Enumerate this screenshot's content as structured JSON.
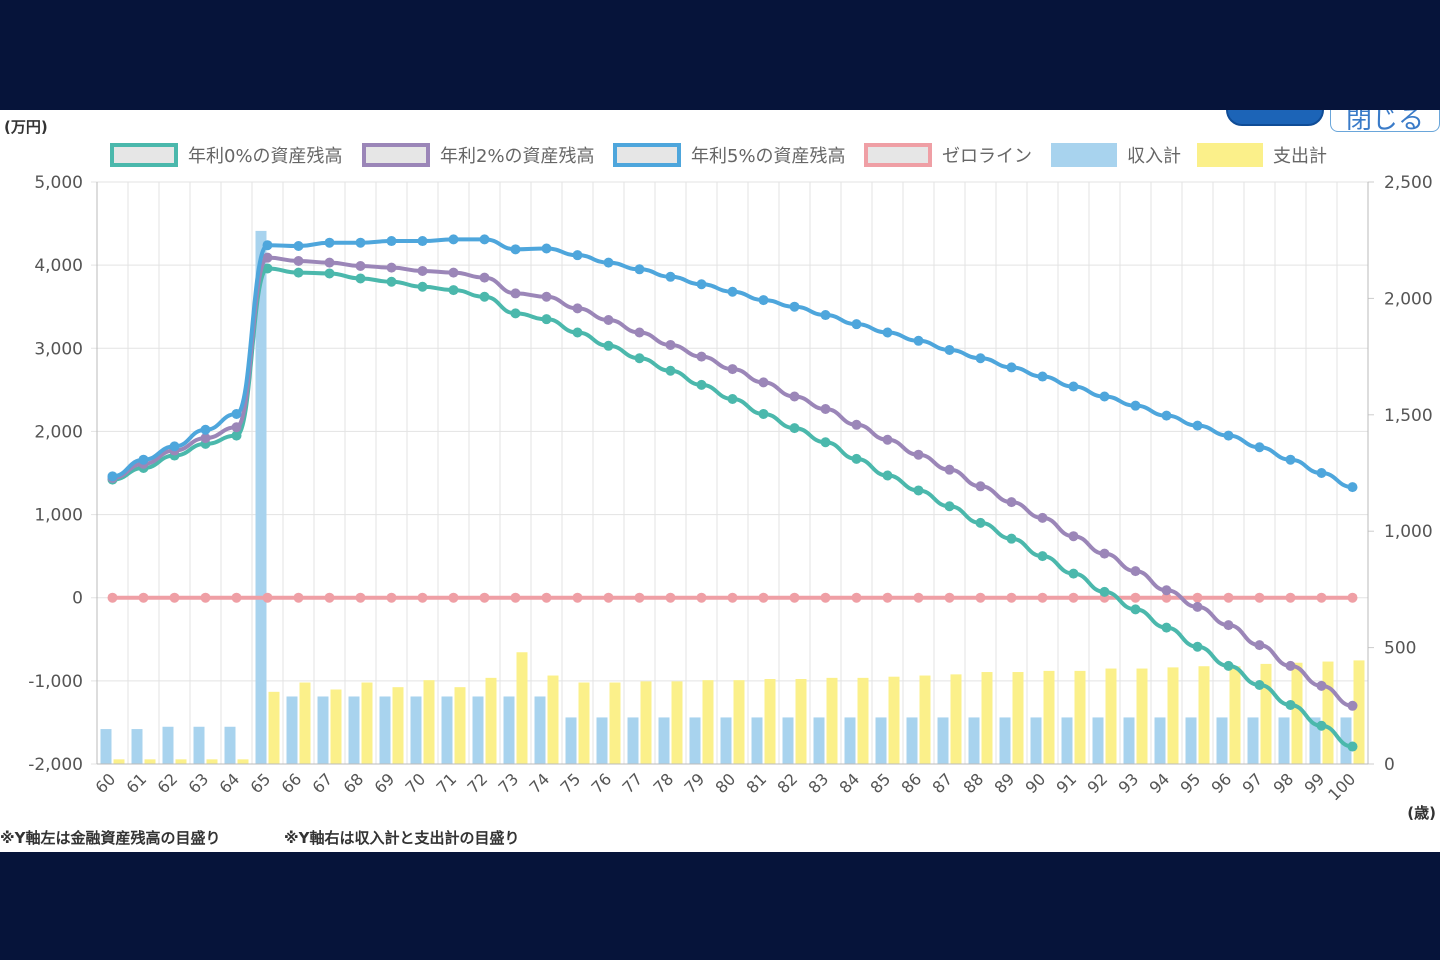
{
  "buttons": {
    "close_label": "閉じる"
  },
  "notes": {
    "left_axis_note": "※Y軸左は金融資産残高の目盛り",
    "right_axis_note": "※Y軸右は収入計と支出計の目盛り"
  },
  "chart_data": {
    "type": "bar-line-combo",
    "left_axis_unit": "(万円)",
    "x_axis_unit": "(歳)",
    "categories": [
      "60",
      "61",
      "62",
      "63",
      "64",
      "65",
      "66",
      "67",
      "68",
      "69",
      "70",
      "71",
      "72",
      "73",
      "74",
      "75",
      "76",
      "77",
      "78",
      "79",
      "80",
      "81",
      "82",
      "83",
      "84",
      "85",
      "86",
      "87",
      "88",
      "89",
      "90",
      "91",
      "92",
      "93",
      "94",
      "95",
      "96",
      "97",
      "98",
      "99",
      "100"
    ],
    "y_left": {
      "min": -2000,
      "max": 5000,
      "ticks": [
        5000,
        4000,
        3000,
        2000,
        1000,
        0,
        -1000,
        -2000
      ],
      "tick_labels": [
        "5,000",
        "4,000",
        "3,000",
        "2,000",
        "1,000",
        "0",
        "-1,000",
        "-2,000"
      ]
    },
    "y_right": {
      "min": 0,
      "max": 2500,
      "ticks": [
        2500,
        2000,
        1500,
        1000,
        500,
        0
      ],
      "tick_labels": [
        "2,500",
        "2,000",
        "1,500",
        "1,000",
        "500",
        "0"
      ]
    },
    "grid": true,
    "legend_position": "top",
    "lines": [
      {
        "name": "年利0%の資産残高",
        "color": "#4bb8ac",
        "axis": "left",
        "values": [
          1420,
          1560,
          1710,
          1850,
          1950,
          3960,
          3910,
          3900,
          3840,
          3800,
          3740,
          3700,
          3620,
          3420,
          3350,
          3190,
          3030,
          2880,
          2730,
          2560,
          2390,
          2210,
          2040,
          1870,
          1670,
          1470,
          1290,
          1100,
          900,
          710,
          500,
          290,
          70,
          -140,
          -360,
          -590,
          -820,
          -1050,
          -1290,
          -1540,
          -1790
        ]
      },
      {
        "name": "年利2%の資産残高",
        "color": "#9b86b8",
        "axis": "left",
        "values": [
          1440,
          1610,
          1770,
          1920,
          2050,
          4090,
          4050,
          4030,
          3990,
          3970,
          3930,
          3910,
          3850,
          3660,
          3620,
          3480,
          3340,
          3190,
          3040,
          2900,
          2750,
          2590,
          2420,
          2270,
          2080,
          1900,
          1720,
          1540,
          1340,
          1150,
          960,
          740,
          530,
          320,
          90,
          -110,
          -330,
          -570,
          -820,
          -1060,
          -1300
        ]
      },
      {
        "name": "年利5%の資産残高",
        "color": "#4ea6dc",
        "axis": "left",
        "values": [
          1460,
          1660,
          1820,
          2020,
          2210,
          4240,
          4230,
          4270,
          4270,
          4290,
          4290,
          4310,
          4310,
          4190,
          4200,
          4120,
          4030,
          3950,
          3860,
          3770,
          3680,
          3580,
          3500,
          3400,
          3290,
          3190,
          3090,
          2980,
          2880,
          2770,
          2660,
          2540,
          2420,
          2310,
          2190,
          2070,
          1950,
          1810,
          1660,
          1500,
          1330
        ]
      },
      {
        "name": "ゼロライン",
        "color": "#ef9fa5",
        "axis": "left",
        "values": [
          0,
          0,
          0,
          0,
          0,
          0,
          0,
          0,
          0,
          0,
          0,
          0,
          0,
          0,
          0,
          0,
          0,
          0,
          0,
          0,
          0,
          0,
          0,
          0,
          0,
          0,
          0,
          0,
          0,
          0,
          0,
          0,
          0,
          0,
          0,
          0,
          0,
          0,
          0,
          0,
          0
        ]
      }
    ],
    "bars": [
      {
        "name": "収入計",
        "color": "#a8d3ee",
        "axis": "right",
        "values": [
          150,
          150,
          160,
          160,
          160,
          2290,
          290,
          290,
          290,
          290,
          290,
          290,
          290,
          290,
          290,
          200,
          200,
          200,
          200,
          200,
          200,
          200,
          200,
          200,
          200,
          200,
          200,
          200,
          200,
          200,
          200,
          200,
          200,
          200,
          200,
          200,
          200,
          200,
          200,
          200,
          200
        ]
      },
      {
        "name": "支出計",
        "color": "#fbf08a",
        "axis": "right",
        "values": [
          20,
          20,
          20,
          20,
          20,
          310,
          350,
          320,
          350,
          330,
          360,
          330,
          370,
          480,
          380,
          350,
          350,
          355,
          355,
          360,
          360,
          365,
          365,
          370,
          370,
          375,
          380,
          385,
          395,
          395,
          400,
          400,
          410,
          410,
          415,
          420,
          420,
          430,
          435,
          440,
          445
        ]
      }
    ]
  }
}
